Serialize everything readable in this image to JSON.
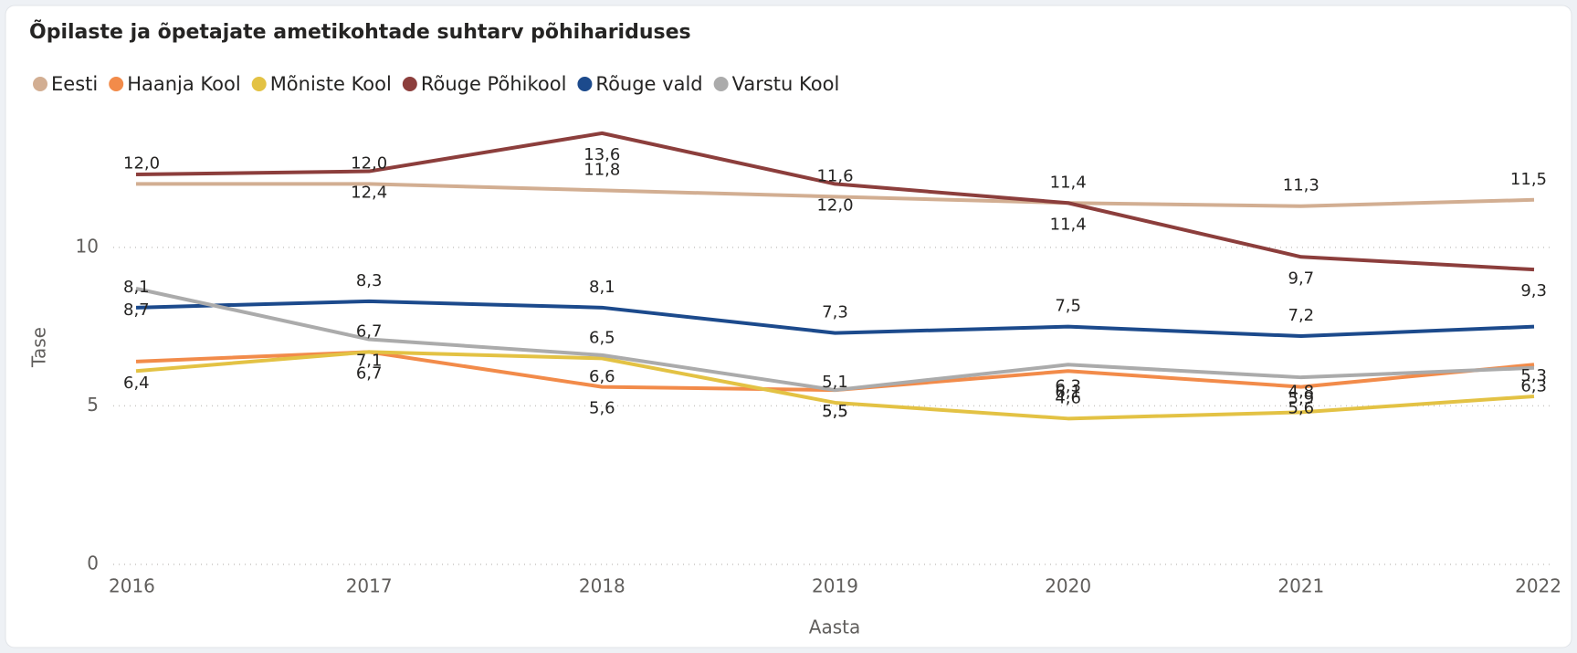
{
  "chart_data": {
    "type": "line",
    "title": "Õpilaste ja õpetajate ametikohtade suhtarv põhihariduses",
    "x_label": "Aasta",
    "y_label": "Tase",
    "categories": [
      "2016",
      "2017",
      "2018",
      "2019",
      "2020",
      "2021",
      "2022"
    ],
    "ylim": [
      0,
      14
    ],
    "yticks": [
      0,
      5,
      10
    ],
    "grid": true,
    "legend": "top-left",
    "series": [
      {
        "name": "Eesti",
        "color": "#d2ae92",
        "values": [
          12.0,
          12.0,
          11.8,
          11.6,
          11.4,
          11.3,
          11.5
        ],
        "value_labels": [
          "12,0",
          "12,0",
          "11,8",
          "11,6",
          "11,4",
          "11,3",
          "11,5"
        ]
      },
      {
        "name": "Haanja Kool",
        "color": "#f28b4a",
        "values": [
          6.4,
          6.7,
          5.6,
          5.5,
          6.1,
          5.6,
          6.3
        ],
        "value_labels": [
          "6,4",
          "6,7",
          "5,6",
          "5,5",
          "6,1",
          "5,6",
          "6,3"
        ]
      },
      {
        "name": "Mõniste Kool",
        "color": "#e3c244",
        "values": [
          6.1,
          6.7,
          6.5,
          5.1,
          4.6,
          4.8,
          5.3
        ],
        "value_labels": [
          null,
          "6,7",
          "6,5",
          "5,1",
          "4,6",
          "4,8",
          "5,3"
        ]
      },
      {
        "name": "Rõuge Põhikool",
        "color": "#8c3e3c",
        "values": [
          12.3,
          12.4,
          13.6,
          12.0,
          11.4,
          9.7,
          9.3
        ],
        "value_labels": [
          null,
          "12,4",
          "13,6",
          "12,0",
          "11,4",
          "9,7",
          "9,3"
        ]
      },
      {
        "name": "Rõuge vald",
        "color": "#1c4a8c",
        "values": [
          8.1,
          8.3,
          8.1,
          7.3,
          7.5,
          7.2,
          7.5
        ],
        "value_labels": [
          "8,1",
          "8,3",
          "8,1",
          "7,3",
          "7,5",
          "7,2",
          null
        ]
      },
      {
        "name": "Varstu Kool",
        "color": "#ababab",
        "values": [
          8.7,
          7.1,
          6.6,
          5.5,
          6.3,
          5.9,
          6.2
        ],
        "value_labels": [
          "8,7",
          "7,1",
          "6,6",
          "5,5",
          "6,3",
          "5,9",
          null
        ]
      }
    ]
  }
}
